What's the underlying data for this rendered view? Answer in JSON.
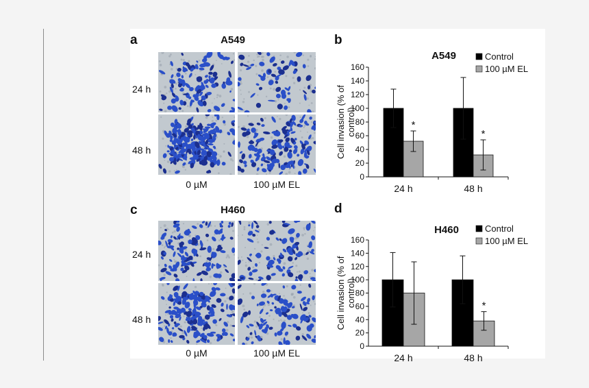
{
  "figure": {
    "panel_a": {
      "letter": "a",
      "title": "A549",
      "rows": [
        "24 h",
        "48 h"
      ],
      "cols": [
        "0 µM",
        "100 µM EL"
      ]
    },
    "panel_c": {
      "letter": "c",
      "title": "H460",
      "rows": [
        "24 h",
        "48 h"
      ],
      "cols": [
        "0 µM",
        "100 µM EL"
      ]
    },
    "panel_b_letter": "b",
    "panel_d_letter": "d"
  },
  "colors": {
    "control": "#000000",
    "treated": "#a6a6a6",
    "stain": "#2a4fc8",
    "micro_bg": "#c2c9cf"
  },
  "chart_data": [
    {
      "id": "b",
      "type": "bar",
      "title": "A549",
      "categories": [
        "24 h",
        "48 h"
      ],
      "series": [
        {
          "name": "Control",
          "values": [
            100,
            100
          ],
          "errors": [
            28,
            45
          ]
        },
        {
          "name": "100 µM EL",
          "values": [
            52,
            32
          ],
          "errors": [
            15,
            22
          ]
        }
      ],
      "annotations": [
        "*",
        "*"
      ],
      "ylabel": "Cell invasion (% of control)",
      "ylabel_lines": [
        "Cell invasion (% of",
        "control)"
      ],
      "ylim": [
        0,
        160
      ],
      "yticks": [
        0,
        20,
        40,
        60,
        80,
        100,
        120,
        140,
        160
      ],
      "legend": "top-right",
      "grid": false
    },
    {
      "id": "d",
      "type": "bar",
      "title": "H460",
      "categories": [
        "24 h",
        "48 h"
      ],
      "series": [
        {
          "name": "Control",
          "values": [
            100,
            100
          ],
          "errors": [
            41,
            36
          ]
        },
        {
          "name": "100 µM EL",
          "values": [
            80,
            38
          ],
          "errors": [
            47,
            14
          ]
        }
      ],
      "annotations": [
        "",
        "*"
      ],
      "ylabel": "Cell invasion (% of control)",
      "ylabel_lines": [
        "Cell invasion (% of",
        "control)"
      ],
      "ylim": [
        0,
        160
      ],
      "yticks": [
        0,
        20,
        40,
        60,
        80,
        100,
        120,
        140,
        160
      ],
      "legend": "top-right",
      "grid": false
    }
  ]
}
